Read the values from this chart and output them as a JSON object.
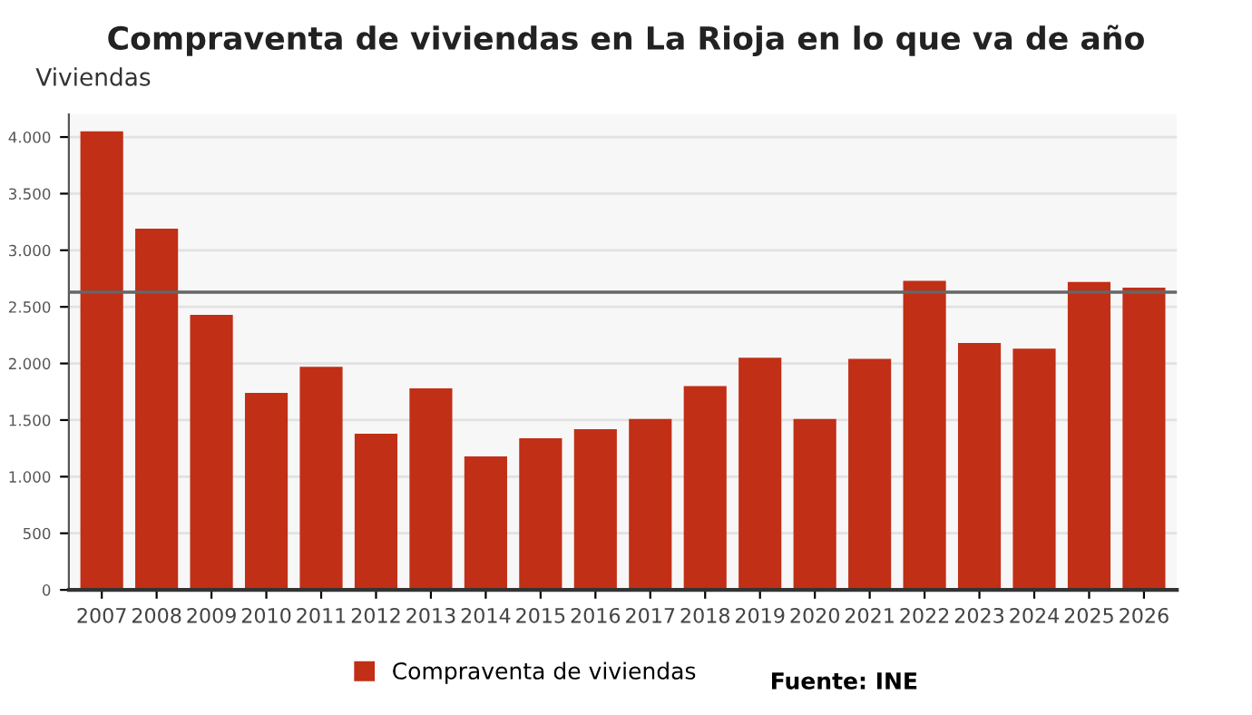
{
  "chart_data": {
    "type": "bar",
    "title": "Compraventa de viviendas en La Rioja en lo que va de año",
    "ylabel": "Viviendas",
    "categories": [
      "2007",
      "2008",
      "2009",
      "2010",
      "2011",
      "2012",
      "2013",
      "2014",
      "2015",
      "2016",
      "2017",
      "2018",
      "2019",
      "2020",
      "2021",
      "2022",
      "2023",
      "2024",
      "2025",
      "2026"
    ],
    "series": [
      {
        "name": "Compraventa de viviendas",
        "color": "#c12f16",
        "values": [
          4050,
          3190,
          2430,
          1740,
          1970,
          1380,
          1780,
          1180,
          1340,
          1420,
          1510,
          1800,
          2050,
          1510,
          2040,
          2730,
          2180,
          2130,
          2720,
          2670
        ]
      }
    ],
    "ylim": [
      0,
      4200
    ],
    "yticks": [
      0,
      {
        "value": 500,
        "label": "500"
      },
      {
        "value": 1000,
        "label": "1.000"
      },
      {
        "value": 1500,
        "label": "1.500"
      },
      {
        "value": 2000,
        "label": "2.000"
      },
      {
        "value": 2500,
        "label": "2.500"
      },
      {
        "value": 3000,
        "label": "3.000"
      },
      {
        "value": 3500,
        "label": "3.500"
      },
      {
        "value": 4000,
        "label": "4.000"
      }
    ],
    "ref_lines": [
      {
        "axis": "y",
        "value": 2630,
        "color": "#666666"
      }
    ],
    "grid": "y",
    "legend": "bottom",
    "annotations": [
      "Fuente: INE"
    ]
  }
}
